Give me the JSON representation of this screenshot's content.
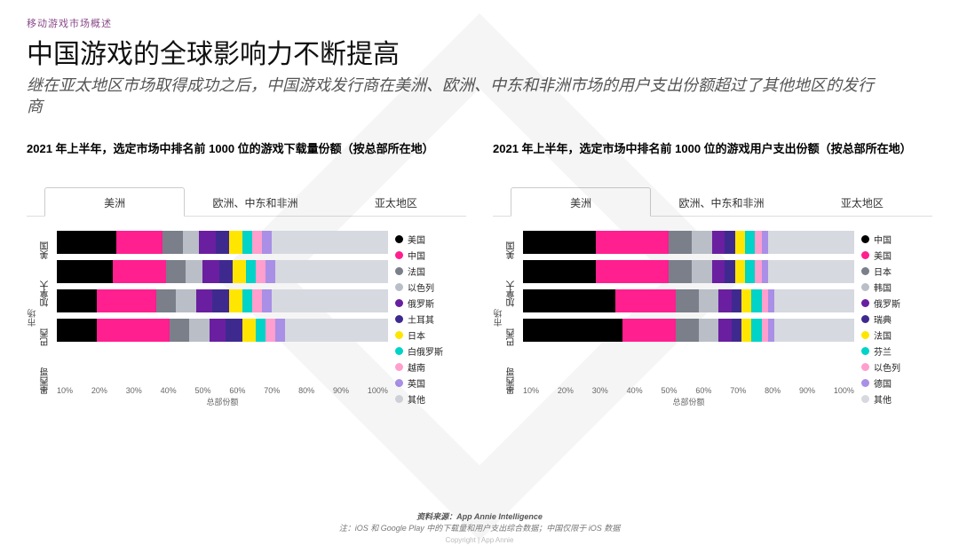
{
  "breadcrumb": "移动游戏市场概述",
  "title": "中国游戏的全球影响力不断提高",
  "subtitle": "继在亚太地区市场取得成功之后，中国游戏发行商在美洲、欧洲、中东和非洲市场的用户支出份额超过了其他地区的发行商",
  "footer_source_label": "资料来源：",
  "footer_source": "App Annie Intelligence",
  "footer_note": "注：iOS 和 Google Play 中的下载量和用户支出综合数据；中国仅限于 iOS 数据",
  "copyright": "Copyright | App Annie",
  "x_ticks": [
    "10%",
    "20%",
    "30%",
    "40%",
    "50%",
    "60%",
    "70%",
    "80%",
    "90%",
    "100%"
  ],
  "x_label": "总部份额",
  "y_label": "市场",
  "tabs": [
    "美洲",
    "欧洲、中东和非洲",
    "亚太地区"
  ],
  "active_tab": 0,
  "colors": {
    "c0": "#000000",
    "c1": "#ff1f8f",
    "c2": "#7a7f8a",
    "c3": "#b9bec7",
    "c4": "#6a1fa0",
    "c5": "#3e2a8f",
    "c6": "#ffe600",
    "c7": "#00d3c7",
    "c8": "#ff9fcd",
    "c9": "#a98fe6",
    "c10": "#d6d9df"
  },
  "chart_left": {
    "title": "2021 年上半年，选定市场中排名前 1000 位的游戏下载量份额（按总部所在地）",
    "legend": [
      "美国",
      "中国",
      "法国",
      "以色列",
      "俄罗斯",
      "土耳其",
      "日本",
      "白俄罗斯",
      "越南",
      "英国",
      "其他"
    ],
    "categories": [
      "美国",
      "加拿大",
      "巴西",
      "墨西哥"
    ],
    "series": [
      [
        18,
        14,
        6,
        5,
        5,
        4,
        4,
        3,
        3,
        3,
        35
      ],
      [
        17,
        16,
        6,
        5,
        5,
        4,
        4,
        3,
        3,
        3,
        34
      ],
      [
        12,
        18,
        6,
        6,
        5,
        5,
        4,
        3,
        3,
        3,
        35
      ],
      [
        12,
        22,
        6,
        6,
        5,
        5,
        4,
        3,
        3,
        3,
        31
      ]
    ]
  },
  "chart_right": {
    "title": "2021 年上半年，选定市场中排名前 1000 位的游戏用户支出份额（按总部所在地）",
    "legend": [
      "中国",
      "美国",
      "日本",
      "韩国",
      "俄罗斯",
      "瑞典",
      "法国",
      "芬兰",
      "以色列",
      "德国",
      "其他"
    ],
    "categories": [
      "美国",
      "加拿大",
      "巴西",
      "墨西哥"
    ],
    "series": [
      [
        22,
        22,
        7,
        6,
        4,
        3,
        3,
        3,
        2,
        2,
        26
      ],
      [
        22,
        22,
        7,
        6,
        4,
        3,
        3,
        3,
        2,
        2,
        26
      ],
      [
        28,
        18,
        7,
        6,
        4,
        3,
        3,
        3,
        2,
        2,
        24
      ],
      [
        30,
        16,
        7,
        6,
        4,
        3,
        3,
        3,
        2,
        2,
        24
      ]
    ]
  }
}
